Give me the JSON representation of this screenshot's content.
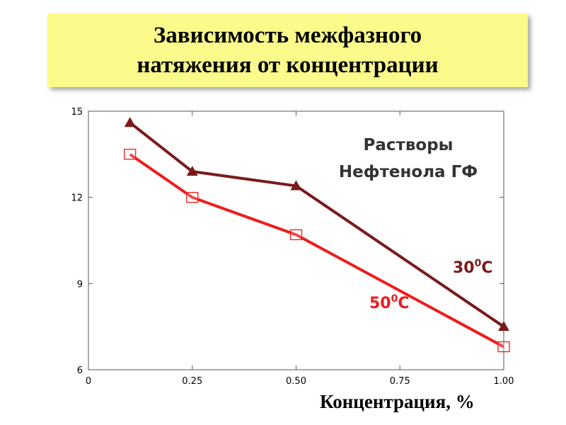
{
  "title": {
    "line1": "Зависимость межфазного",
    "line2": "натяжения от концентрации"
  },
  "colors": {
    "title_bg": "#fbfb8c",
    "series_30": "#7a1a1a",
    "series_50": "#ee1c1c"
  },
  "chart_data": {
    "type": "line",
    "xlabel": "Концентрация, %",
    "ylabel": "",
    "xlim": [
      0,
      1.0
    ],
    "ylim": [
      6,
      15
    ],
    "x_ticks": [
      "0",
      "0.25",
      "0.50",
      "0.75",
      "1.00"
    ],
    "y_ticks": [
      "6",
      "9",
      "12",
      "15"
    ],
    "grid": false,
    "annotation": {
      "line1": "Растворы",
      "line2": "Нефтенола ГФ"
    },
    "series": [
      {
        "name": "30⁰С",
        "label_main": "30",
        "label_sup": "0",
        "label_tail": "С",
        "marker": "filled-triangle",
        "x": [
          0.1,
          0.25,
          0.5,
          1.0
        ],
        "y": [
          14.6,
          12.9,
          12.4,
          7.5
        ]
      },
      {
        "name": "50⁰С",
        "label_main": "50",
        "label_sup": "0",
        "label_tail": "С",
        "marker": "open-square",
        "x": [
          0.1,
          0.25,
          0.5,
          1.0
        ],
        "y": [
          13.5,
          12.0,
          10.7,
          6.8
        ]
      }
    ]
  }
}
